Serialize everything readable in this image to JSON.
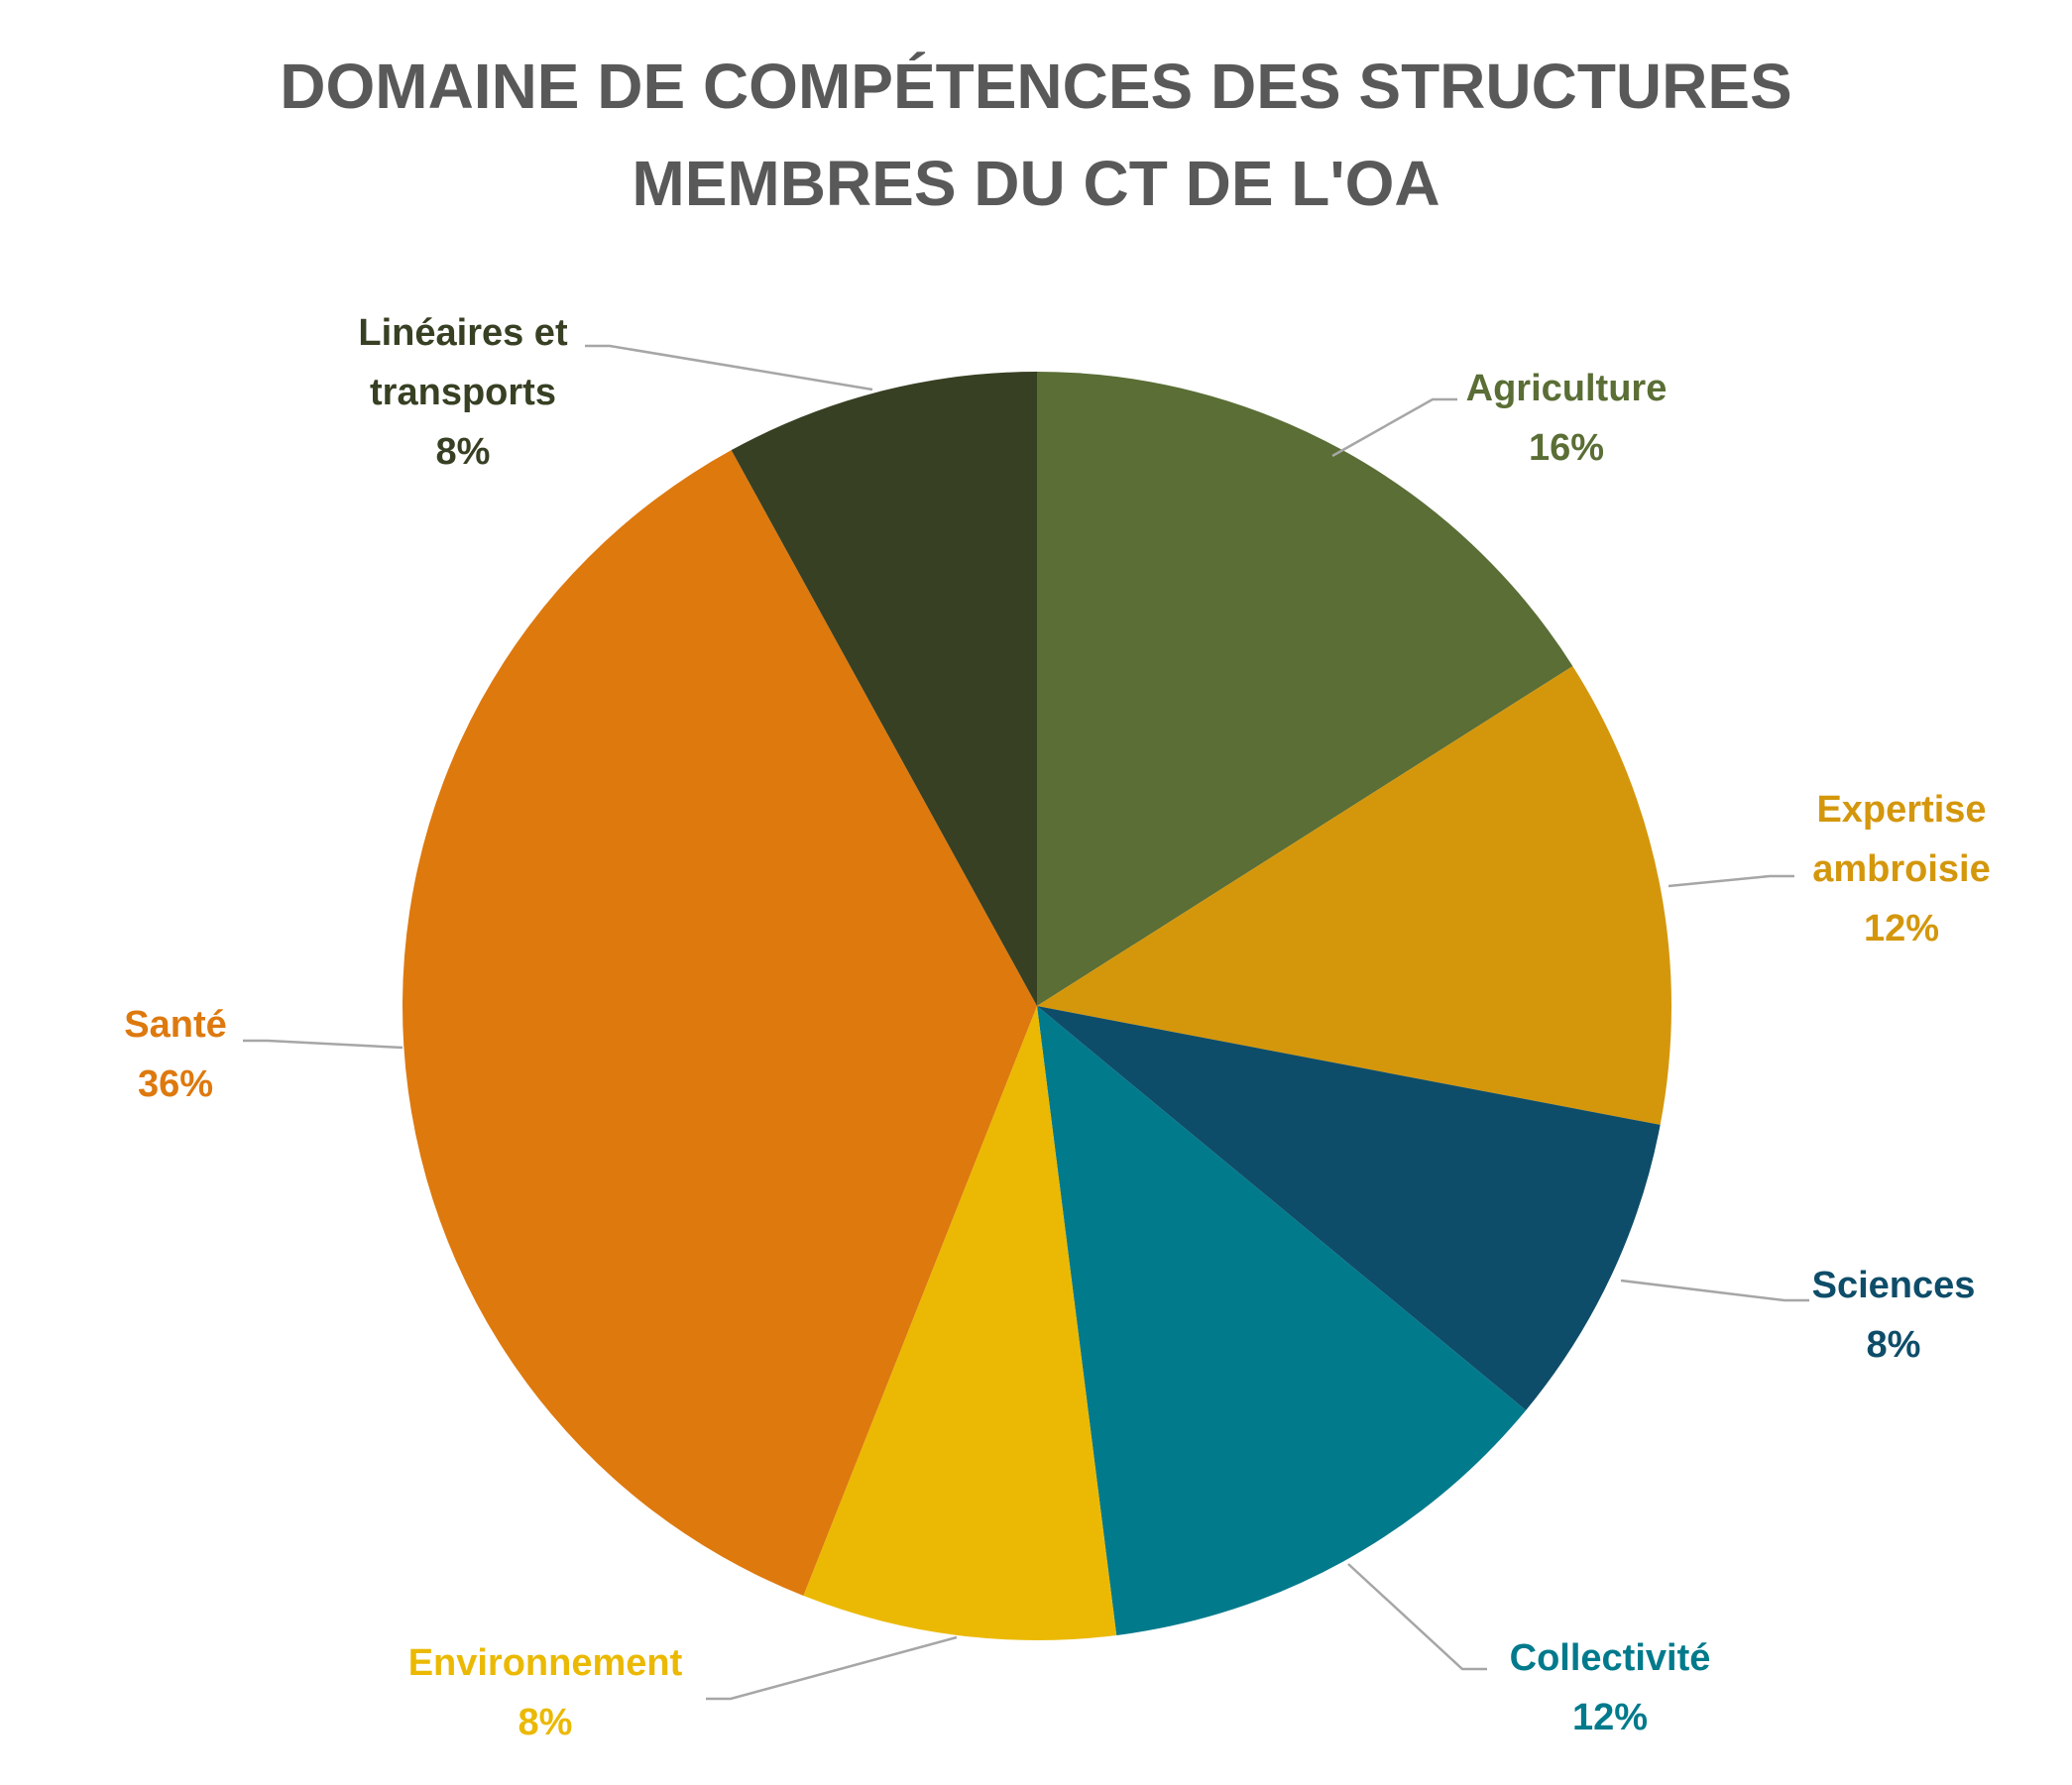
{
  "chart_data": {
    "type": "pie",
    "title_lines": [
      "DOMAINE DE COMPÉTENCES DES STRUCTURES",
      "MEMBRES DU CT DE L'OA"
    ],
    "slices": [
      {
        "label_lines": [
          "Agriculture"
        ],
        "value": 16,
        "value_label": "16%",
        "color": "#5a6e35"
      },
      {
        "label_lines": [
          "Expertise",
          "ambroisie"
        ],
        "value": 12,
        "value_label": "12%",
        "color": "#d4970c"
      },
      {
        "label_lines": [
          "Sciences"
        ],
        "value": 8,
        "value_label": "8%",
        "color": "#0e4d69"
      },
      {
        "label_lines": [
          "Collectivité"
        ],
        "value": 12,
        "value_label": "12%",
        "color": "#017a8c"
      },
      {
        "label_lines": [
          "Environnement"
        ],
        "value": 8,
        "value_label": "8%",
        "color": "#ebb903"
      },
      {
        "label_lines": [
          "Santé"
        ],
        "value": 36,
        "value_label": "36%",
        "color": "#de790e"
      },
      {
        "label_lines": [
          "Linéaires et",
          "transports"
        ],
        "value": 8,
        "value_label": "8%",
        "color": "#374023"
      }
    ],
    "start_angle": "12 o'clock",
    "direction": "clockwise",
    "legend": "none",
    "data_labels": "outside with leader lines"
  }
}
